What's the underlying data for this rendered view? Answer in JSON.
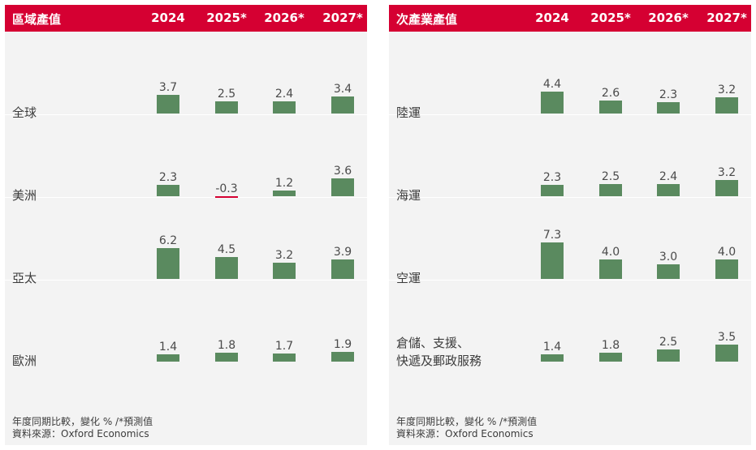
{
  "chart_data": [
    {
      "type": "bar",
      "title": "區域產值",
      "categories": [
        "2024",
        "2025*",
        "2026*",
        "2027*"
      ],
      "series": [
        {
          "name": "全球",
          "values": [
            3.7,
            2.5,
            2.4,
            3.4
          ]
        },
        {
          "name": "美洲",
          "values": [
            2.3,
            -0.3,
            1.2,
            3.6
          ]
        },
        {
          "name": "亞太",
          "values": [
            6.2,
            4.5,
            3.2,
            3.9
          ]
        },
        {
          "name": "歐洲",
          "values": [
            1.4,
            1.8,
            1.7,
            1.9
          ]
        }
      ],
      "footer": [
        "年度同期比較，變化 % /*預測值",
        "資料來源：Oxford Economics"
      ]
    },
    {
      "type": "bar",
      "title": "次產業產值",
      "categories": [
        "2024",
        "2025*",
        "2026*",
        "2027*"
      ],
      "series": [
        {
          "name": "陸運",
          "values": [
            4.4,
            2.6,
            2.3,
            3.2
          ]
        },
        {
          "name": "海運",
          "values": [
            2.3,
            2.5,
            2.4,
            3.2
          ]
        },
        {
          "name": "空運",
          "values": [
            7.3,
            4.0,
            3.0,
            4.0
          ]
        },
        {
          "name": "倉儲、支援、\n快遞及郵政服務",
          "values": [
            1.4,
            1.8,
            2.5,
            3.5
          ]
        }
      ],
      "footer": [
        "年度同期比較，變化 % /*預測值",
        "資料來源：Oxford Economics"
      ]
    }
  ],
  "colors": {
    "header": "#d50032",
    "bar": "#5a8a5f",
    "negative": "#d50032",
    "panel": "#f3f3f3"
  }
}
